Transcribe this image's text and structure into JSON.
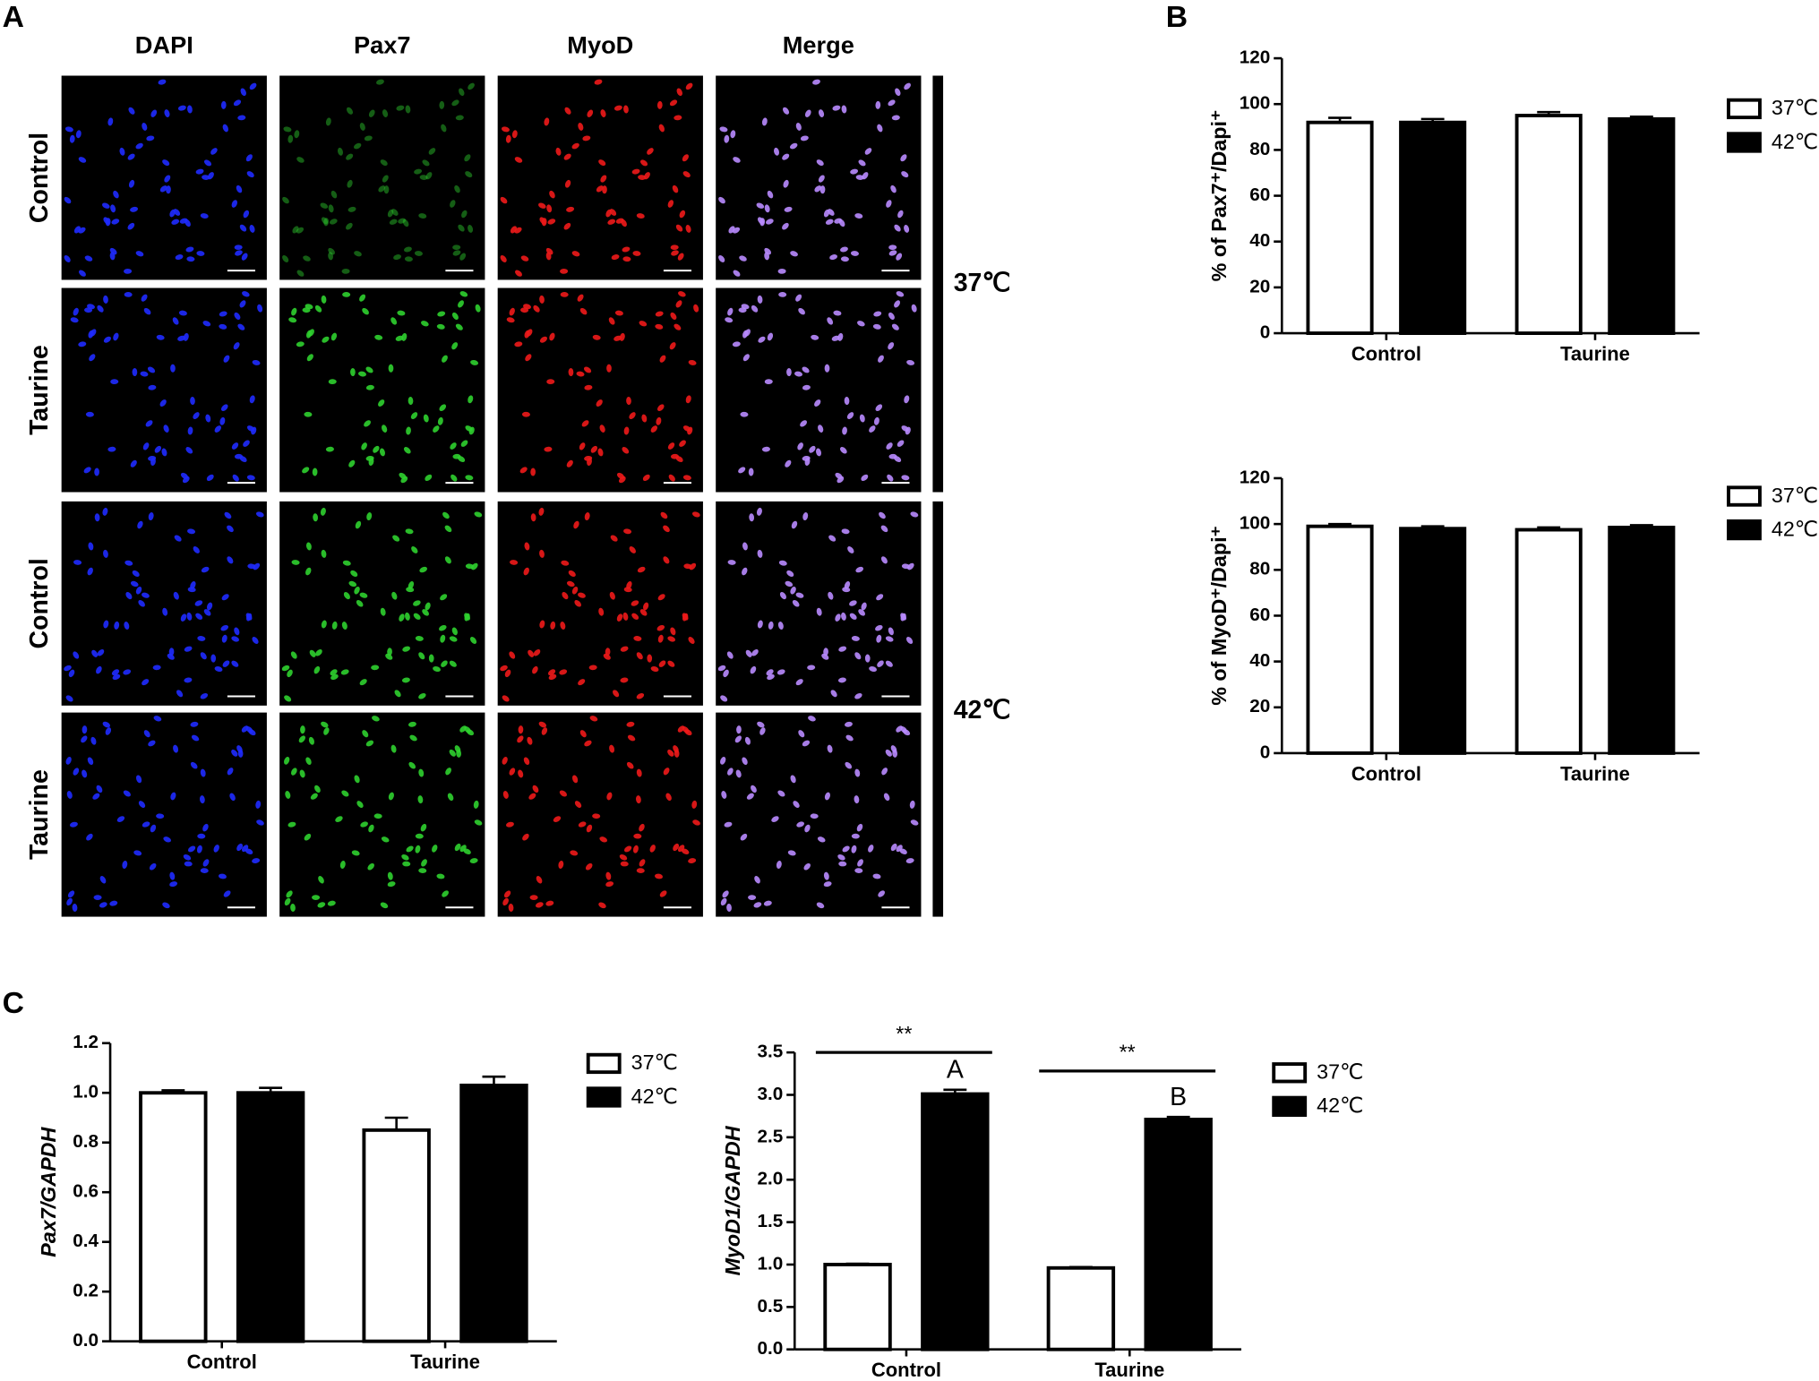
{
  "panel_labels": [
    "A",
    "B",
    "C"
  ],
  "micrographs": {
    "columns": [
      "DAPI",
      "Pax7",
      "MyoD",
      "Merge"
    ],
    "rows": [
      "Control",
      "Taurine",
      "Control",
      "Taurine"
    ],
    "temperatures": [
      "37℃",
      "42℃"
    ]
  },
  "chart_data": [
    {
      "type": "bar",
      "y_label": "% of Pax7⁺/Dapi⁺",
      "categories": [
        "Control",
        "Taurine"
      ],
      "series": [
        {
          "name": "37℃",
          "color": "#ffffff",
          "values": [
            92,
            95
          ],
          "errors": [
            2,
            1.5
          ]
        },
        {
          "name": "42℃",
          "color": "#000000",
          "values": [
            92,
            93.5
          ],
          "errors": [
            1.5,
            1
          ]
        }
      ],
      "ylim": [
        0,
        120
      ],
      "yticks": [
        0,
        20,
        40,
        60,
        80,
        100,
        120
      ]
    },
    {
      "type": "bar",
      "y_label": "% of MyoD⁺/Dapi⁺",
      "categories": [
        "Control",
        "Taurine"
      ],
      "series": [
        {
          "name": "37℃",
          "color": "#ffffff",
          "values": [
            99,
            97.5
          ],
          "errors": [
            1,
            1
          ]
        },
        {
          "name": "42℃",
          "color": "#000000",
          "values": [
            98,
            98.5
          ],
          "errors": [
            1,
            1
          ]
        }
      ],
      "ylim": [
        0,
        120
      ],
      "yticks": [
        0,
        20,
        40,
        60,
        80,
        100,
        120
      ]
    },
    {
      "type": "bar",
      "y_label": "Pax7/GAPDH",
      "categories": [
        "Control",
        "Taurine"
      ],
      "series": [
        {
          "name": "37℃",
          "color": "#ffffff",
          "values": [
            1.0,
            0.85
          ],
          "errors": [
            0.01,
            0.05
          ]
        },
        {
          "name": "42℃",
          "color": "#000000",
          "values": [
            1.0,
            1.03
          ],
          "errors": [
            0.02,
            0.035
          ]
        }
      ],
      "ylim": [
        0,
        1.2
      ],
      "yticks": [
        {
          "value": 0,
          "label": "0.0"
        },
        0.2,
        0.4,
        0.6,
        0.8,
        {
          "value": 1,
          "label": "1.0"
        },
        1.2
      ]
    },
    {
      "type": "bar",
      "y_label": "MyoD1/GAPDH",
      "categories": [
        "Control",
        "Taurine"
      ],
      "series": [
        {
          "name": "37℃",
          "color": "#ffffff",
          "values": [
            1.0,
            0.96
          ],
          "errors": [
            0.01,
            0.01
          ]
        },
        {
          "name": "42℃",
          "color": "#000000",
          "values": [
            3.01,
            2.71
          ],
          "errors": [
            0.05,
            0.03
          ]
        }
      ],
      "significance": [
        "**",
        "**"
      ],
      "group_letters": [
        "A",
        "B"
      ],
      "ylim": [
        0,
        3.5
      ],
      "yticks": [
        {
          "value": 0,
          "label": "0.0"
        },
        0.5,
        {
          "value": 1,
          "label": "1.0"
        },
        1.5,
        {
          "value": 2,
          "label": "2.0"
        },
        2.5,
        {
          "value": 3,
          "label": "3.0"
        },
        3.5
      ]
    }
  ]
}
